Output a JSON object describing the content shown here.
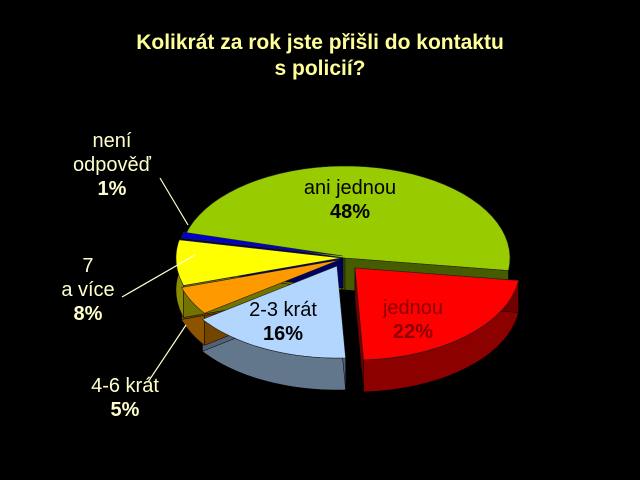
{
  "chart_data": {
    "type": "pie",
    "title": "Kolikrát za rok jste přišli do kontaktu\ns policií?",
    "categories": [
      "ani jednou",
      "jednou",
      "2-3 krát",
      "4-6 krát",
      "7\na více",
      "není\nodpověď"
    ],
    "values": [
      48,
      22,
      16,
      5,
      8,
      1
    ],
    "value_labels": [
      "48%",
      "22%",
      "16%",
      "5%",
      "8%",
      "1%"
    ],
    "colors": [
      "#99cc00",
      "#ff0000",
      "#b3d6ff",
      "#ff9900",
      "#ffff00",
      "#0000cc"
    ]
  }
}
